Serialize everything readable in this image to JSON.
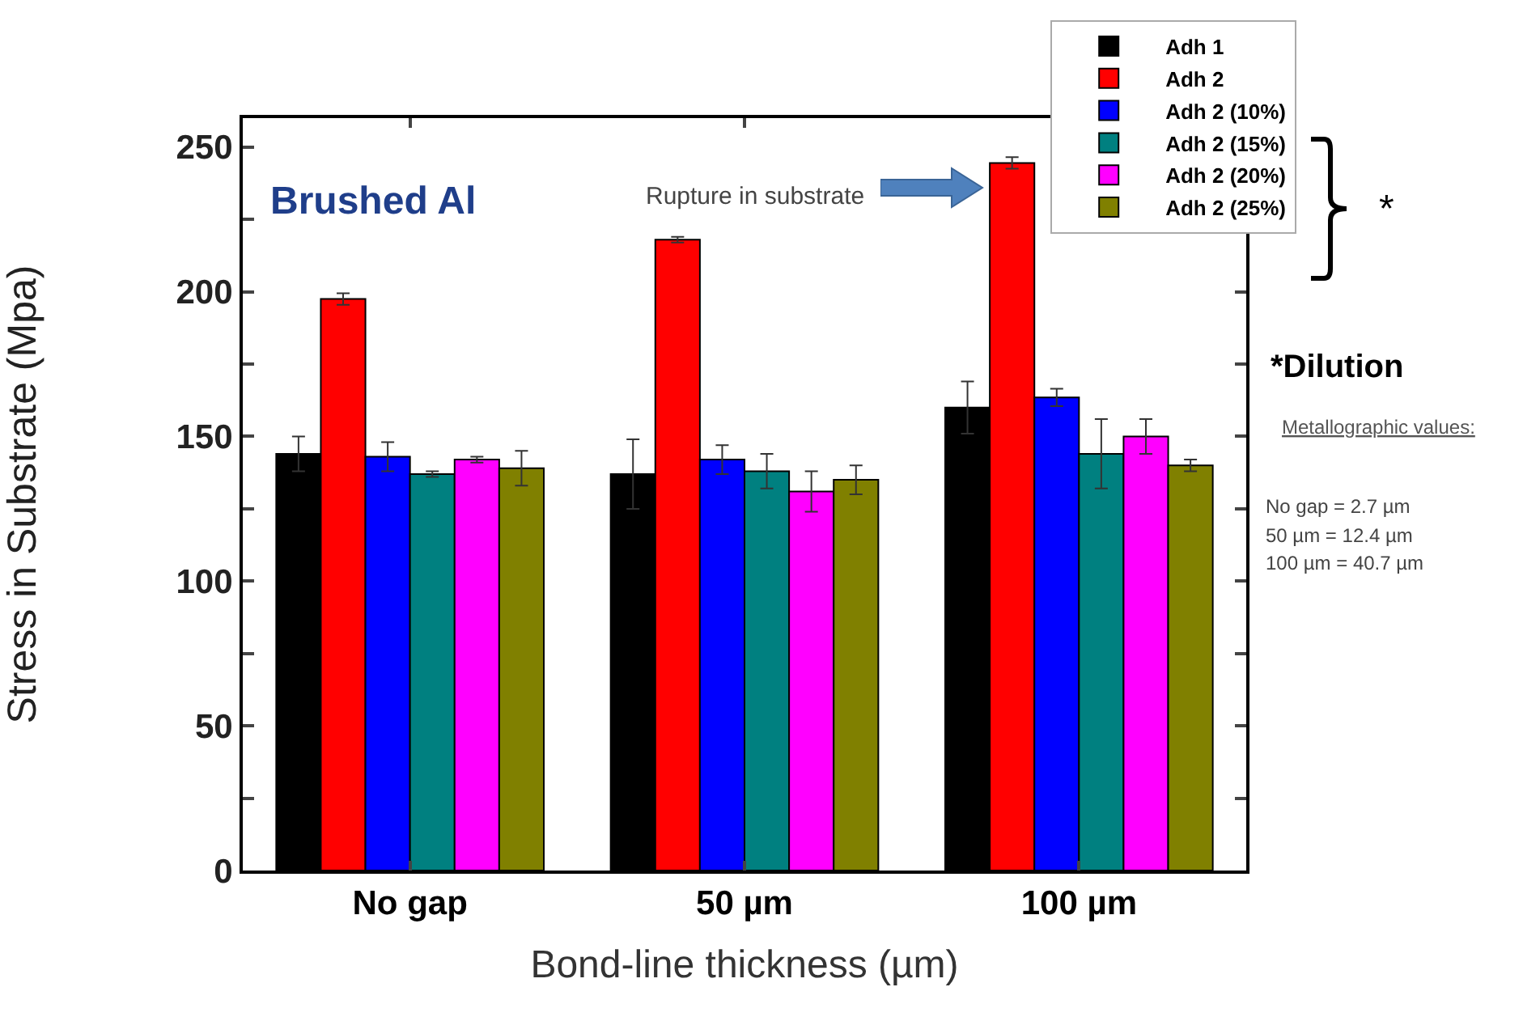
{
  "chart_data": {
    "type": "bar",
    "xlabel": "Bond-line thickness (µm)",
    "ylabel": "Stress in Substrate (Mpa)",
    "categories": [
      "No gap",
      "50 µm",
      "100 µm"
    ],
    "series": [
      {
        "name": "Adh 1",
        "color": "#000000",
        "values": [
          144,
          137,
          160
        ],
        "errors": [
          6,
          12,
          9
        ]
      },
      {
        "name": "Adh 2",
        "color": "#ff0000",
        "values": [
          197.5,
          218,
          244.5
        ],
        "errors": [
          2,
          1,
          2
        ]
      },
      {
        "name": "Adh 2 (10%)",
        "color": "#0000ff",
        "values": [
          143,
          142,
          163.5
        ],
        "errors": [
          5,
          5,
          3
        ]
      },
      {
        "name": "Adh 2 (15%)",
        "color": "#008080",
        "values": [
          137,
          138,
          144
        ],
        "errors": [
          1,
          6,
          12
        ]
      },
      {
        "name": "Adh 2 (20%)",
        "color": "#ff00ff",
        "values": [
          142,
          131,
          150
        ],
        "errors": [
          1,
          7,
          6
        ]
      },
      {
        "name": "Adh 2 (25%)",
        "color": "#808000",
        "values": [
          139,
          135,
          140
        ],
        "errors": [
          6,
          5,
          2
        ]
      }
    ],
    "ylim": [
      0,
      260
    ],
    "yticks": [
      0,
      {
        "value": 25,
        "label": null
      },
      50,
      {
        "value": 75,
        "label": null
      },
      100,
      {
        "value": 125,
        "label": null
      },
      150,
      {
        "value": 175,
        "label": null
      },
      200,
      {
        "value": 225,
        "label": null
      },
      250
    ],
    "grid": false,
    "legend": "top right",
    "annotations": [
      "Brushed Al",
      "Rupture in substrate",
      "*",
      "*Dilution",
      "Metallographic values:",
      "No gap = 2.7 µm",
      "50 µm = 12.4 µm",
      "100 µm = 40.7 µm"
    ]
  }
}
